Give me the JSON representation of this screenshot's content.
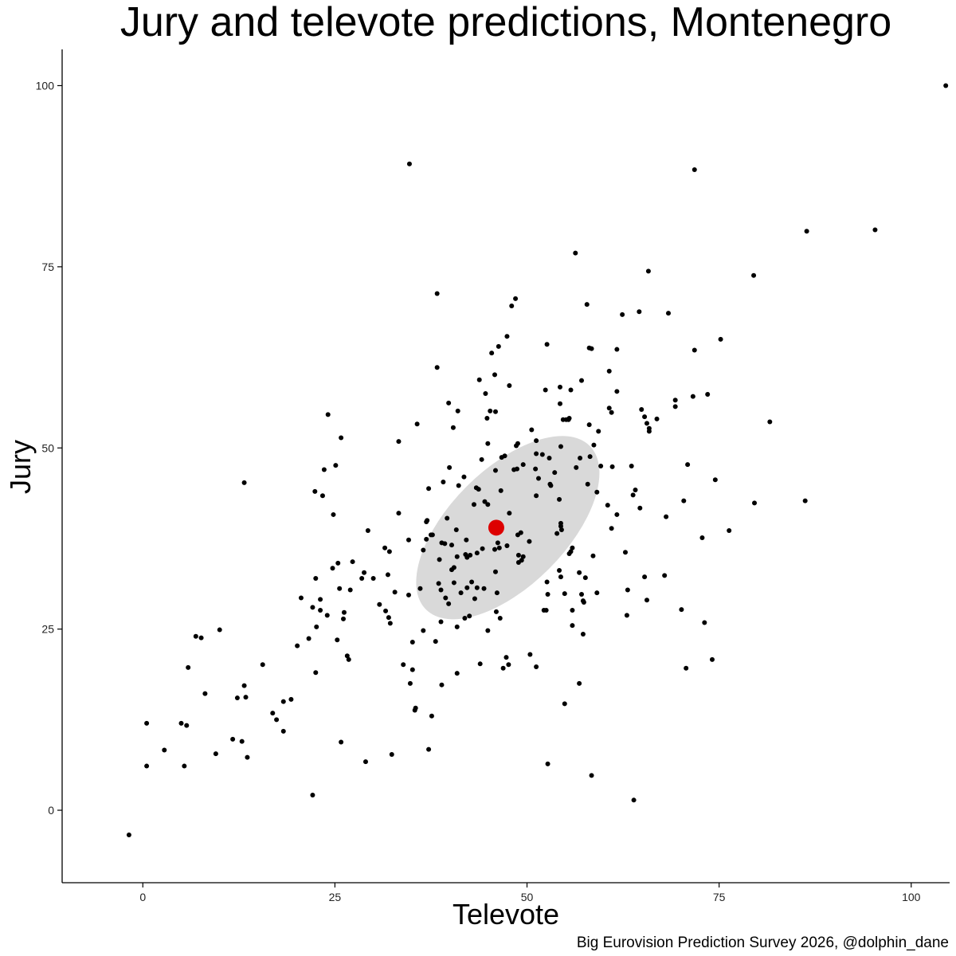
{
  "chart_data": {
    "type": "scatter",
    "title": "Jury and televote predictions, Montenegro",
    "xlabel": "Televote",
    "ylabel": "Jury",
    "caption": "Big Eurovision Prediction Survey 2026, @dolphin_dane",
    "xlim": [
      -10.5,
      105
    ],
    "ylim": [
      -10,
      105
    ],
    "x_ticks": [
      "0",
      "25",
      "50",
      "75",
      "100"
    ],
    "y_ticks": [
      "0",
      "25",
      "50",
      "75",
      "100"
    ],
    "grid": false,
    "colors": {
      "points": "#000000",
      "mean": "#dd0000",
      "ellipse": "#d9d9d9"
    },
    "mean": {
      "x": 46,
      "y": 39
    },
    "ellipse": {
      "center": [
        47.5,
        39
      ],
      "semi_axes_data": [
        15.5,
        7.8
      ],
      "angle_deg": 45
    },
    "points": [
      [
        -1.8,
        -3.4
      ],
      [
        0.5,
        6.1
      ],
      [
        0.5,
        12
      ],
      [
        2.8,
        8.3
      ],
      [
        5,
        12
      ],
      [
        5.4,
        6.1
      ],
      [
        5.7,
        11.7
      ],
      [
        5.9,
        19.7
      ],
      [
        6.9,
        24
      ],
      [
        7.6,
        23.8
      ],
      [
        8.1,
        16.1
      ],
      [
        9.5,
        7.8
      ],
      [
        10,
        24.9
      ],
      [
        11.7,
        9.8
      ],
      [
        12.3,
        15.5
      ],
      [
        12.9,
        9.5
      ],
      [
        13.2,
        17.2
      ],
      [
        13.4,
        15.6
      ],
      [
        13.2,
        45.2
      ],
      [
        13.6,
        7.3
      ],
      [
        15.6,
        20.1
      ],
      [
        16.9,
        13.4
      ],
      [
        17.4,
        12.5
      ],
      [
        18.3,
        15
      ],
      [
        18.3,
        10.9
      ],
      [
        19.3,
        15.3
      ],
      [
        20.1,
        22.7
      ],
      [
        20.6,
        29.3
      ],
      [
        21.6,
        23.7
      ],
      [
        22.1,
        28
      ],
      [
        22.1,
        2.1
      ],
      [
        22.5,
        19
      ],
      [
        22.6,
        25.3
      ],
      [
        23.1,
        29.1
      ],
      [
        23.1,
        27.6
      ],
      [
        22.5,
        32
      ],
      [
        22.4,
        44
      ],
      [
        23.4,
        43.4
      ],
      [
        23.6,
        47
      ],
      [
        24.1,
        54.6
      ],
      [
        24,
        26.9
      ],
      [
        24.7,
        33.4
      ],
      [
        24.8,
        40.8
      ],
      [
        25.1,
        47.6
      ],
      [
        25.4,
        34.1
      ],
      [
        25.3,
        23.5
      ],
      [
        25.6,
        30.6
      ],
      [
        25.8,
        9.4
      ],
      [
        25.8,
        51.4
      ],
      [
        26.1,
        26.4
      ],
      [
        26.2,
        27.3
      ],
      [
        26.6,
        21.3
      ],
      [
        26.8,
        20.8
      ],
      [
        27,
        30.4
      ],
      [
        27.3,
        34.3
      ],
      [
        28.5,
        32
      ],
      [
        28.8,
        32.8
      ],
      [
        29,
        6.7
      ],
      [
        29.3,
        38.6
      ],
      [
        30,
        32
      ],
      [
        30.8,
        28.4
      ],
      [
        31.6,
        27.5
      ],
      [
        31.5,
        36.2
      ],
      [
        31.9,
        32.5
      ],
      [
        32,
        26.6
      ],
      [
        32.1,
        35.7
      ],
      [
        32.2,
        25.8
      ],
      [
        32.4,
        7.7
      ],
      [
        32.8,
        30.1
      ],
      [
        33.3,
        50.9
      ],
      [
        33.3,
        41
      ],
      [
        33.9,
        20.1
      ],
      [
        34.6,
        29.7
      ],
      [
        34.6,
        37.3
      ],
      [
        34.8,
        17.5
      ],
      [
        34.7,
        89.2
      ],
      [
        35.1,
        19.4
      ],
      [
        35.1,
        23.2
      ],
      [
        35.4,
        13.8
      ],
      [
        35.5,
        14.1
      ],
      [
        35.7,
        53.3
      ],
      [
        36.1,
        30.6
      ],
      [
        36.5,
        35.9
      ],
      [
        36.5,
        24.8
      ],
      [
        36.9,
        37.4
      ],
      [
        37,
        40
      ],
      [
        36.9,
        39.8
      ],
      [
        37.2,
        44.4
      ],
      [
        37.5,
        38
      ],
      [
        37.2,
        8.4
      ],
      [
        37.7,
        38
      ],
      [
        37.6,
        13
      ],
      [
        38.1,
        23.3
      ],
      [
        38.3,
        61.1
      ],
      [
        38.3,
        71.3
      ],
      [
        38.6,
        34.6
      ],
      [
        38.5,
        31.3
      ],
      [
        38.8,
        30.4
      ],
      [
        38.8,
        26
      ],
      [
        38.9,
        17.3
      ],
      [
        38.9,
        36.9
      ],
      [
        39.1,
        45.3
      ],
      [
        39.3,
        36.8
      ],
      [
        39.4,
        29.3
      ],
      [
        39.6,
        40.3
      ],
      [
        39.9,
        47.3
      ],
      [
        39.8,
        56.2
      ],
      [
        39.8,
        28.5
      ],
      [
        40.2,
        33.2
      ],
      [
        40.2,
        36.6
      ],
      [
        40.5,
        31.4
      ],
      [
        40.5,
        33.5
      ],
      [
        40.4,
        52.8
      ],
      [
        40.8,
        38.7
      ],
      [
        40.9,
        35
      ],
      [
        40.9,
        25.3
      ],
      [
        40.9,
        18.9
      ],
      [
        41,
        55.1
      ],
      [
        41.1,
        44.8
      ],
      [
        41.4,
        30
      ],
      [
        41.9,
        26.5
      ],
      [
        41.8,
        46
      ],
      [
        42.1,
        37.3
      ],
      [
        42,
        35.3
      ],
      [
        42.2,
        34.9
      ],
      [
        42.2,
        30.7
      ],
      [
        42.6,
        35.2
      ],
      [
        42.5,
        26.8
      ],
      [
        42.8,
        31.5
      ],
      [
        43.1,
        42.2
      ],
      [
        43.2,
        29.2
      ],
      [
        43.4,
        44.5
      ],
      [
        43.5,
        30.7
      ],
      [
        43.5,
        35.5
      ],
      [
        43.8,
        59.4
      ],
      [
        43.9,
        20.2
      ],
      [
        43.7,
        44.3
      ],
      [
        44.1,
        48.4
      ],
      [
        44.2,
        36.1
      ],
      [
        44.4,
        30.6
      ],
      [
        44.5,
        42.6
      ],
      [
        44.6,
        57.5
      ],
      [
        44.8,
        54.1
      ],
      [
        44.9,
        42.2
      ],
      [
        44.9,
        24.8
      ],
      [
        44.9,
        50.6
      ],
      [
        45.2,
        55.1
      ],
      [
        45.4,
        38.9
      ],
      [
        45.4,
        63.1
      ],
      [
        45.8,
        36
      ],
      [
        45.9,
        46.9
      ],
      [
        45.9,
        32.9
      ],
      [
        45.8,
        60.1
      ],
      [
        45.9,
        55
      ],
      [
        46.1,
        30
      ],
      [
        46,
        27.4
      ],
      [
        46.2,
        39.5
      ],
      [
        46.2,
        36.9
      ],
      [
        46.5,
        26.5
      ],
      [
        46.3,
        64
      ],
      [
        46.4,
        36.2
      ],
      [
        46.6,
        44.1
      ],
      [
        46.7,
        48.7
      ],
      [
        46.9,
        19.6
      ],
      [
        47.1,
        48.9
      ],
      [
        47.3,
        21.1
      ],
      [
        47.4,
        65.4
      ],
      [
        47.4,
        36.5
      ],
      [
        47.6,
        20.1
      ],
      [
        47.7,
        58.6
      ],
      [
        47.7,
        41
      ],
      [
        48,
        69.6
      ],
      [
        48.3,
        47
      ],
      [
        48.5,
        70.6
      ],
      [
        48.6,
        50.3
      ],
      [
        48.7,
        47.1
      ],
      [
        48.8,
        38
      ],
      [
        48.9,
        35.2
      ],
      [
        48.8,
        50.6
      ],
      [
        49.2,
        38.3
      ],
      [
        48.9,
        34.2
      ],
      [
        49.3,
        34.5
      ],
      [
        49.5,
        47.7
      ],
      [
        49.5,
        35
      ],
      [
        50.3,
        37.1
      ],
      [
        50.4,
        21.5
      ],
      [
        50.6,
        52.5
      ],
      [
        51.2,
        49.2
      ],
      [
        51.2,
        19.8
      ],
      [
        51.1,
        47.1
      ],
      [
        51.2,
        51
      ],
      [
        51.2,
        43.4
      ],
      [
        51.5,
        45.8
      ],
      [
        52,
        49.1
      ],
      [
        52.2,
        27.6
      ],
      [
        52.4,
        58
      ],
      [
        52.5,
        27.6
      ],
      [
        52.6,
        64.3
      ],
      [
        52.7,
        6.4
      ],
      [
        52.6,
        31.5
      ],
      [
        52.7,
        29.8
      ],
      [
        52.9,
        48.6
      ],
      [
        53,
        45
      ],
      [
        53.1,
        44.8
      ],
      [
        53.6,
        46.6
      ],
      [
        53.9,
        38.2
      ],
      [
        54.3,
        56.1
      ],
      [
        54.2,
        33.1
      ],
      [
        54.2,
        42.9
      ],
      [
        54.4,
        39.2
      ],
      [
        54.4,
        39.6
      ],
      [
        54.4,
        50.2
      ],
      [
        54.3,
        58.4
      ],
      [
        54.4,
        32.2
      ],
      [
        54.5,
        38.7
      ],
      [
        54.7,
        53.9
      ],
      [
        54.9,
        29.9
      ],
      [
        54.9,
        14.7
      ],
      [
        55.1,
        53.9
      ],
      [
        55.4,
        53.9
      ],
      [
        55.5,
        35.4
      ],
      [
        55.5,
        54.1
      ],
      [
        55.7,
        58
      ],
      [
        55.7,
        35.7
      ],
      [
        55.9,
        36.2
      ],
      [
        55.9,
        25.5
      ],
      [
        55.9,
        27.6
      ],
      [
        56.3,
        76.9
      ],
      [
        56.4,
        47.3
      ],
      [
        56.8,
        32.8
      ],
      [
        56.8,
        17.5
      ],
      [
        56.9,
        48.6
      ],
      [
        57.1,
        59.3
      ],
      [
        57.1,
        29.8
      ],
      [
        57.3,
        28.9
      ],
      [
        57.3,
        24.3
      ],
      [
        57.4,
        28.7
      ],
      [
        57.6,
        32.1
      ],
      [
        57.8,
        69.8
      ],
      [
        57.9,
        45
      ],
      [
        58.1,
        63.8
      ],
      [
        58.1,
        53.2
      ],
      [
        58.2,
        48.8
      ],
      [
        58.4,
        4.8
      ],
      [
        58.4,
        63.7
      ],
      [
        58.6,
        35.1
      ],
      [
        58.7,
        50.4
      ],
      [
        59.1,
        30
      ],
      [
        59.1,
        43.9
      ],
      [
        59.3,
        52.3
      ],
      [
        59.6,
        47.5
      ],
      [
        60.5,
        42.1
      ],
      [
        60.7,
        60.6
      ],
      [
        60.7,
        55.5
      ],
      [
        61,
        54.9
      ],
      [
        61,
        38.9
      ],
      [
        61.1,
        47.4
      ],
      [
        61.7,
        40.8
      ],
      [
        61.7,
        63.6
      ],
      [
        61.7,
        57.8
      ],
      [
        62.4,
        68.4
      ],
      [
        62.8,
        35.6
      ],
      [
        63,
        26.9
      ],
      [
        63.1,
        30.4
      ],
      [
        63.6,
        47.5
      ],
      [
        63.8,
        43.5
      ],
      [
        63.9,
        1.4
      ],
      [
        64.1,
        44.2
      ],
      [
        64.6,
        68.8
      ],
      [
        64.7,
        41.7
      ],
      [
        64.9,
        55.3
      ],
      [
        65.3,
        54.3
      ],
      [
        65.3,
        32.2
      ],
      [
        65.6,
        53.4
      ],
      [
        65.6,
        29
      ],
      [
        65.9,
        52.7
      ],
      [
        65.8,
        74.4
      ],
      [
        65.9,
        52.3
      ],
      [
        66.9,
        54
      ],
      [
        67.9,
        32.4
      ],
      [
        68.1,
        40.5
      ],
      [
        68.4,
        68.6
      ],
      [
        69.3,
        55.7
      ],
      [
        69.3,
        56.6
      ],
      [
        70.1,
        27.7
      ],
      [
        70.4,
        42.7
      ],
      [
        70.7,
        19.6
      ],
      [
        70.9,
        47.7
      ],
      [
        71.6,
        57.1
      ],
      [
        71.8,
        88.4
      ],
      [
        71.8,
        63.5
      ],
      [
        72.8,
        37.6
      ],
      [
        73.1,
        25.9
      ],
      [
        73.5,
        57.4
      ],
      [
        74.1,
        20.8
      ],
      [
        74.5,
        45.6
      ],
      [
        75.2,
        65
      ],
      [
        76.3,
        38.6
      ],
      [
        79.5,
        73.8
      ],
      [
        79.6,
        42.4
      ],
      [
        81.6,
        53.6
      ],
      [
        86.2,
        42.7
      ],
      [
        86.4,
        79.9
      ],
      [
        95.3,
        80.1
      ],
      [
        104.5,
        100
      ]
    ]
  }
}
